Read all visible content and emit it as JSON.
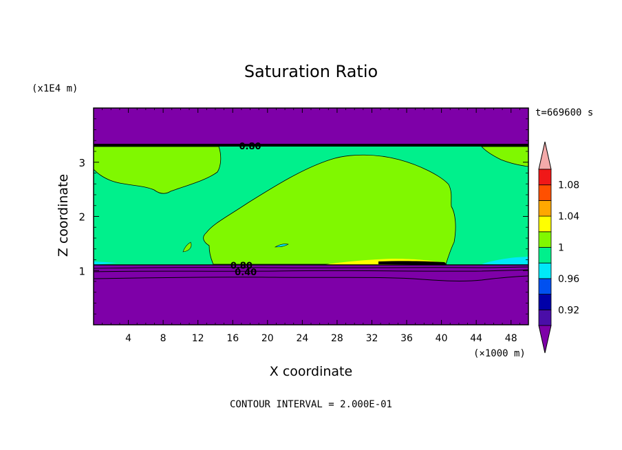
{
  "chart_data": {
    "type": "contour",
    "title": "Saturation Ratio",
    "xlabel": "X coordinate",
    "ylabel": "Z coordinate",
    "x_unit": "(×1000 m)",
    "y_unit": "(x1E4 m)",
    "time_label": "t=669600 s",
    "footer": "CONTOUR INTERVAL = 2.000E-01",
    "xlim": [
      0,
      50
    ],
    "ylim": [
      0,
      4
    ],
    "x_ticks": [
      4,
      8,
      12,
      16,
      20,
      24,
      28,
      32,
      36,
      40,
      44,
      48
    ],
    "y_ticks": [
      1,
      2,
      3
    ],
    "contour_labels": [
      {
        "text": "0.80",
        "x": 18,
        "y": 3.3
      },
      {
        "text": "0.80",
        "x": 17,
        "y": 1.1
      },
      {
        "text": "0.40",
        "x": 17.5,
        "y": 0.98
      }
    ],
    "colorbar": {
      "levels": [
        "0.92",
        "0.96",
        "1",
        "1.04",
        "1.08"
      ],
      "colors": [
        "#7e00a8",
        "#4a0ea8",
        "#0000a8",
        "#0050f0",
        "#00e8f8",
        "#00f08c",
        "#80f800",
        "#ffff00",
        "#ffa800",
        "#ff5000",
        "#f01818",
        "#f4aaaa"
      ]
    },
    "colors": {
      "below": "#7e00a8",
      "near_one": "#00f08c",
      "above_one": "#80f800",
      "band": "#ffff00",
      "cyan": "#00e8f8"
    }
  }
}
